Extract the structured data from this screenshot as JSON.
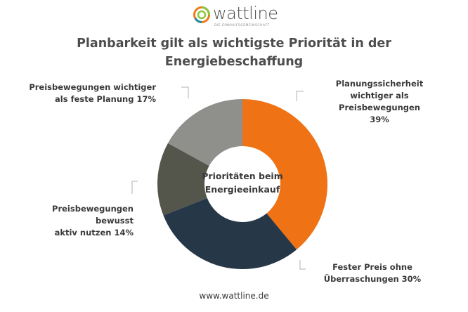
{
  "brand": {
    "name": "wattline",
    "tagline": "DIE EINKAUFSGEMEINSCHAFT",
    "colors": {
      "orange": "#f07a1a",
      "green": "#8cc63f",
      "teal": "#1b8fa6"
    }
  },
  "title_lines": [
    "Planbarkeit gilt als wichtigste Priorität in der",
    "Energiebeschaffung"
  ],
  "center_lines": [
    "Prioritäten beim",
    "Energieeinkauf"
  ],
  "footer": "www.wattline.de",
  "chart_data": {
    "type": "pie",
    "donut": true,
    "title": "Planbarkeit gilt als wichtigste Priorität in der Energiebeschaffung",
    "center_text": "Prioritäten beim Energieeinkauf",
    "slices": [
      {
        "label_lines": [
          "Planungssicherheit",
          "wichtiger als",
          "Preisbewegungen 39%"
        ],
        "value": 39,
        "color": "#ef7214"
      },
      {
        "label_lines": [
          "Fester Preis ohne",
          "Überraschungen 30%"
        ],
        "value": 30,
        "color": "#263848"
      },
      {
        "label_lines": [
          "Preisbewegungen bewusst",
          "aktiv nutzen 14%"
        ],
        "value": 14,
        "color": "#54564b"
      },
      {
        "label_lines": [
          "Preisbewegungen wichtiger",
          "als feste Planung 17%"
        ],
        "value": 17,
        "color": "#8f8f8b"
      }
    ]
  }
}
